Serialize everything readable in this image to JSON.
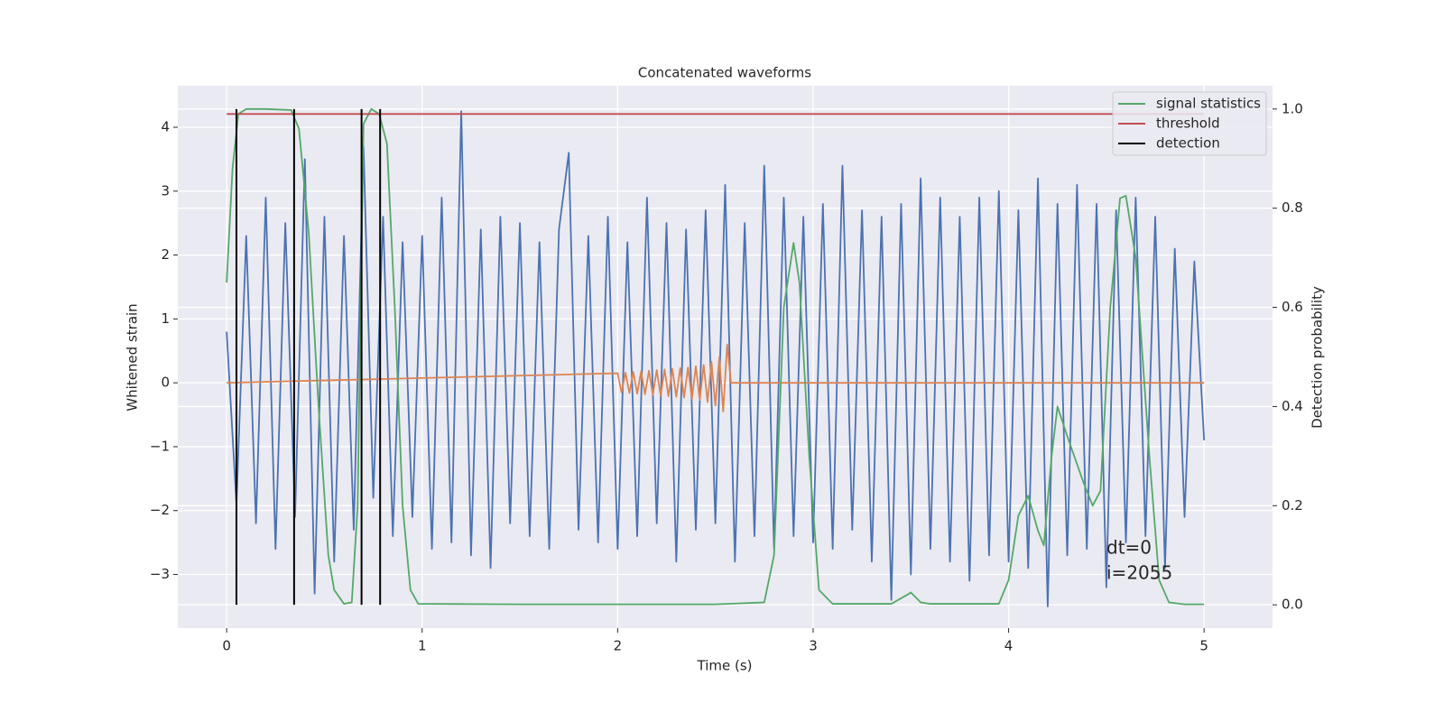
{
  "chart_data": {
    "type": "line",
    "title": "Concatenated waveforms",
    "xlabel": "Time (s)",
    "ylabel": "Whitened strain",
    "y2label": "Detection probability",
    "xlim": [
      -0.25,
      5.35
    ],
    "ylim": [
      -3.84,
      4.65
    ],
    "y2lim": [
      -0.047,
      1.047
    ],
    "xticks": [
      0,
      1,
      2,
      3,
      4,
      5
    ],
    "yticks": [
      {
        "value": -3,
        "label": "−3"
      },
      {
        "value": -2,
        "label": "−2"
      },
      {
        "value": -1,
        "label": "−1"
      },
      0,
      1,
      2,
      3,
      4
    ],
    "y2ticks": [
      {
        "value": 0,
        "label": "0.0"
      },
      {
        "value": 0.2,
        "label": "0.2"
      },
      {
        "value": 0.4,
        "label": "0.4"
      },
      {
        "value": 0.6,
        "label": "0.6"
      },
      {
        "value": 0.8,
        "label": "0.8"
      },
      {
        "value": 1,
        "label": "1.0"
      }
    ],
    "grid": true,
    "legend": "upper right",
    "series": [
      {
        "color": "#4c72b0",
        "x": [
          0,
          0.05,
          0.1,
          0.15,
          0.2,
          0.25,
          0.3,
          0.35,
          0.4,
          0.45,
          0.5,
          0.55,
          0.6,
          0.65,
          0.7,
          0.75,
          0.8,
          0.85,
          0.9,
          0.95,
          1,
          1.05,
          1.1,
          1.15,
          1.2,
          1.25,
          1.3,
          1.35,
          1.4,
          1.45,
          1.5,
          1.55,
          1.6,
          1.65,
          1.7,
          1.75,
          1.8,
          1.85,
          1.9,
          1.95,
          2,
          2.05,
          2.1,
          2.15,
          2.2,
          2.25,
          2.3,
          2.35,
          2.4,
          2.45,
          2.5,
          2.55,
          2.6,
          2.65,
          2.7,
          2.75,
          2.8,
          2.85,
          2.9,
          2.95,
          3,
          3.05,
          3.1,
          3.15,
          3.2,
          3.25,
          3.3,
          3.35,
          3.4,
          3.45,
          3.5,
          3.55,
          3.6,
          3.65,
          3.7,
          3.75,
          3.8,
          3.85,
          3.9,
          3.95,
          4,
          4.05,
          4.1,
          4.15,
          4.2,
          4.25,
          4.3,
          4.35,
          4.4,
          4.45,
          4.5,
          4.55,
          4.6,
          4.65,
          4.7,
          4.75,
          4.8,
          4.85,
          4.9,
          4.95,
          5
        ],
        "values": [
          0.8,
          -1.9,
          2.3,
          -2.2,
          2.9,
          -2.6,
          2.5,
          -2.1,
          3.5,
          -3.3,
          2.6,
          -2.8,
          2.3,
          -2.3,
          3.7,
          -1.8,
          2.6,
          -2.4,
          2.2,
          -2.1,
          2.3,
          -2.6,
          2.9,
          -2.5,
          4.25,
          -2.7,
          2.4,
          -2.9,
          2.6,
          -2.2,
          2.5,
          -2.4,
          2.2,
          -2.6,
          2.4,
          3.6,
          -2.3,
          2.3,
          -2.5,
          2.6,
          -2.6,
          2.2,
          -2.4,
          2.9,
          -2.2,
          2.5,
          -2.8,
          2.4,
          -2.3,
          2.7,
          -2.2,
          3.1,
          -2.8,
          2.5,
          -2.4,
          3.4,
          -2.6,
          2.9,
          -2.4,
          2.6,
          -2.5,
          2.8,
          -2.6,
          3.4,
          -2.3,
          2.7,
          -2.8,
          2.6,
          -3.4,
          2.8,
          -3.0,
          3.2,
          -2.6,
          2.9,
          -2.8,
          2.6,
          -3.1,
          2.9,
          -2.7,
          3.0,
          -2.8,
          2.7,
          -2.9,
          3.2,
          -3.5,
          2.8,
          -2.7,
          3.1,
          -2.6,
          2.8,
          -3.2,
          2.7,
          -2.5,
          2.9,
          -2.4,
          2.6,
          -2.9,
          2.1,
          -2.1,
          1.9,
          -0.9
        ]
      },
      {
        "color": "#dd8452",
        "x": [
          0,
          2,
          2.02,
          2.04,
          2.06,
          2.08,
          2.1,
          2.12,
          2.14,
          2.16,
          2.18,
          2.2,
          2.22,
          2.24,
          2.26,
          2.28,
          2.3,
          2.32,
          2.34,
          2.36,
          2.38,
          2.4,
          2.42,
          2.44,
          2.46,
          2.48,
          2.5,
          2.52,
          2.54,
          2.56,
          2.58,
          5
        ],
        "values": [
          0,
          0.15,
          -0.15,
          0.16,
          -0.16,
          0.17,
          -0.17,
          0.18,
          -0.18,
          0.19,
          -0.19,
          0.2,
          -0.2,
          0.21,
          -0.21,
          0.22,
          -0.22,
          0.23,
          -0.23,
          0.24,
          -0.25,
          0.26,
          -0.27,
          0.28,
          -0.3,
          0.33,
          -0.36,
          0.4,
          -0.45,
          0.6,
          0,
          0
        ]
      },
      {
        "name": "signal statistics",
        "color": "#55a868",
        "axis": "y2",
        "x": [
          0,
          0.03,
          0.06,
          0.1,
          0.2,
          0.33,
          0.37,
          0.42,
          0.47,
          0.52,
          0.55,
          0.6,
          0.64,
          0.67,
          0.7,
          0.74,
          0.78,
          0.82,
          0.86,
          0.9,
          0.94,
          0.98,
          1.5,
          2.5,
          2.75,
          2.8,
          2.85,
          2.9,
          2.93,
          2.98,
          3.03,
          3.1,
          3.4,
          3.48,
          3.5,
          3.55,
          3.6,
          3.95,
          4,
          4.05,
          4.1,
          4.15,
          4.18,
          4.22,
          4.25,
          4.3,
          4.38,
          4.43,
          4.47,
          4.52,
          4.57,
          4.6,
          4.65,
          4.72,
          4.77,
          4.82,
          4.9,
          5
        ],
        "values": [
          0.65,
          0.88,
          0.99,
          1,
          1,
          0.998,
          0.96,
          0.75,
          0.4,
          0.1,
          0.03,
          0.002,
          0.005,
          0.2,
          0.97,
          1,
          0.99,
          0.93,
          0.6,
          0.2,
          0.03,
          0.002,
          0.001,
          0.001,
          0.005,
          0.1,
          0.6,
          0.73,
          0.65,
          0.3,
          0.03,
          0.002,
          0.002,
          0.02,
          0.025,
          0.005,
          0.002,
          0.002,
          0.05,
          0.18,
          0.22,
          0.15,
          0.12,
          0.3,
          0.4,
          0.34,
          0.25,
          0.2,
          0.23,
          0.6,
          0.82,
          0.825,
          0.7,
          0.3,
          0.05,
          0.005,
          0.001,
          0.001
        ]
      },
      {
        "name": "threshold",
        "color": "#c44e52",
        "axis": "y2",
        "x": [
          0,
          5
        ],
        "values": [
          0.99,
          0.99
        ]
      },
      {
        "name": "detection",
        "color": "#000000",
        "axis": "y2",
        "style": "vlines",
        "x": [
          0.05,
          0.345,
          0.69,
          0.785
        ],
        "ymin": 0,
        "ymax": 1
      }
    ],
    "annotations": [
      "dt=0",
      "i=2055"
    ]
  }
}
